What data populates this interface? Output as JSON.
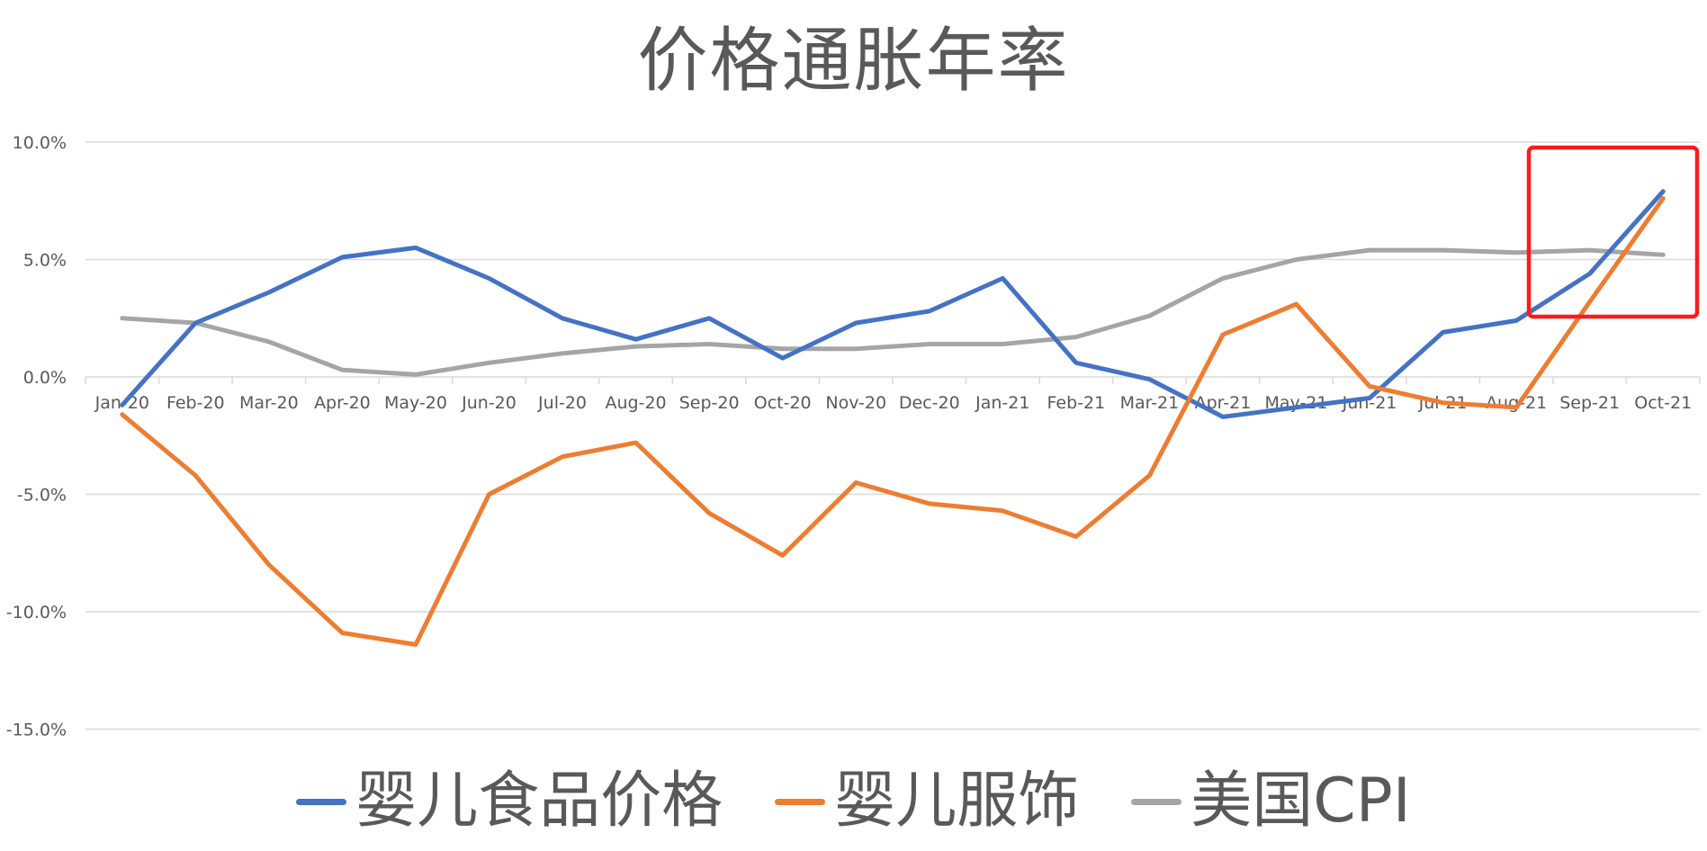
{
  "chart_data": {
    "type": "line",
    "title": "价格通胀年率",
    "xlabel": "",
    "ylabel": "",
    "ylim": [
      -15,
      10
    ],
    "yticks": [
      10,
      5,
      0,
      -5,
      -10,
      -15
    ],
    "ytick_labels": [
      "10.0%",
      "5.0%",
      "0.0%",
      "-5.0%",
      "-10.0%",
      "-15.0%"
    ],
    "grid": true,
    "legend_position": "bottom",
    "categories": [
      "Jan-20",
      "Feb-20",
      "Mar-20",
      "Apr-20",
      "May-20",
      "Jun-20",
      "Jul-20",
      "Aug-20",
      "Sep-20",
      "Oct-20",
      "Nov-20",
      "Dec-20",
      "Jan-21",
      "Feb-21",
      "Mar-21",
      "Apr-21",
      "May-21",
      "Jun-21",
      "Jul-21",
      "Aug-21",
      "Sep-21",
      "Oct-21"
    ],
    "series": [
      {
        "name": "婴儿食品价格",
        "color": "#4472C4",
        "values": [
          -1.2,
          2.3,
          3.6,
          5.1,
          5.5,
          4.2,
          2.5,
          1.6,
          2.5,
          0.8,
          2.3,
          2.8,
          4.2,
          0.6,
          -0.1,
          -1.7,
          -1.3,
          -0.9,
          1.9,
          2.4,
          4.4,
          7.9
        ]
      },
      {
        "name": "婴儿服饰",
        "color": "#ED7D31",
        "values": [
          -1.6,
          -4.2,
          -8.0,
          -10.9,
          -11.4,
          -5.0,
          -3.4,
          -2.8,
          -5.8,
          -7.6,
          -4.5,
          -5.4,
          -5.7,
          -6.8,
          -4.2,
          1.8,
          3.1,
          -0.4,
          -1.1,
          -1.3,
          3.2,
          7.6
        ]
      },
      {
        "name": "美国CPI",
        "color": "#A5A5A5",
        "values": [
          2.5,
          2.3,
          1.5,
          0.3,
          0.1,
          0.6,
          1.0,
          1.3,
          1.4,
          1.2,
          1.2,
          1.4,
          1.4,
          1.7,
          2.6,
          4.2,
          5.0,
          5.4,
          5.4,
          5.3,
          5.4,
          5.2
        ]
      }
    ],
    "annotations": [
      {
        "type": "rectangle",
        "color": "#FF0000",
        "covers": [
          "Sep-21",
          "Oct-21"
        ],
        "y_range": [
          2.6,
          9.0
        ],
        "description": "highlight box around latest months"
      }
    ]
  },
  "colors": {
    "text": "#595959",
    "grid": "#D9D9D9",
    "highlight": "#FF1A1A"
  }
}
